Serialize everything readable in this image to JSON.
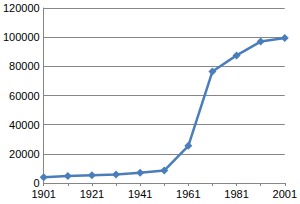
{
  "chart_data": {
    "type": "line",
    "categories": [
      "1901",
      null,
      "1921",
      null,
      "1941",
      null,
      "1961",
      null,
      "1981",
      null,
      "2001"
    ],
    "values": [
      4000,
      4800,
      5300,
      5800,
      7000,
      8500,
      25500,
      76500,
      87500,
      97000,
      99500
    ],
    "color": "#4a7ebb",
    "marker": "diamond",
    "ylim": [
      0,
      120000
    ],
    "yticks": [
      0,
      20000,
      40000,
      60000,
      80000,
      100000,
      120000
    ],
    "grid": true
  }
}
